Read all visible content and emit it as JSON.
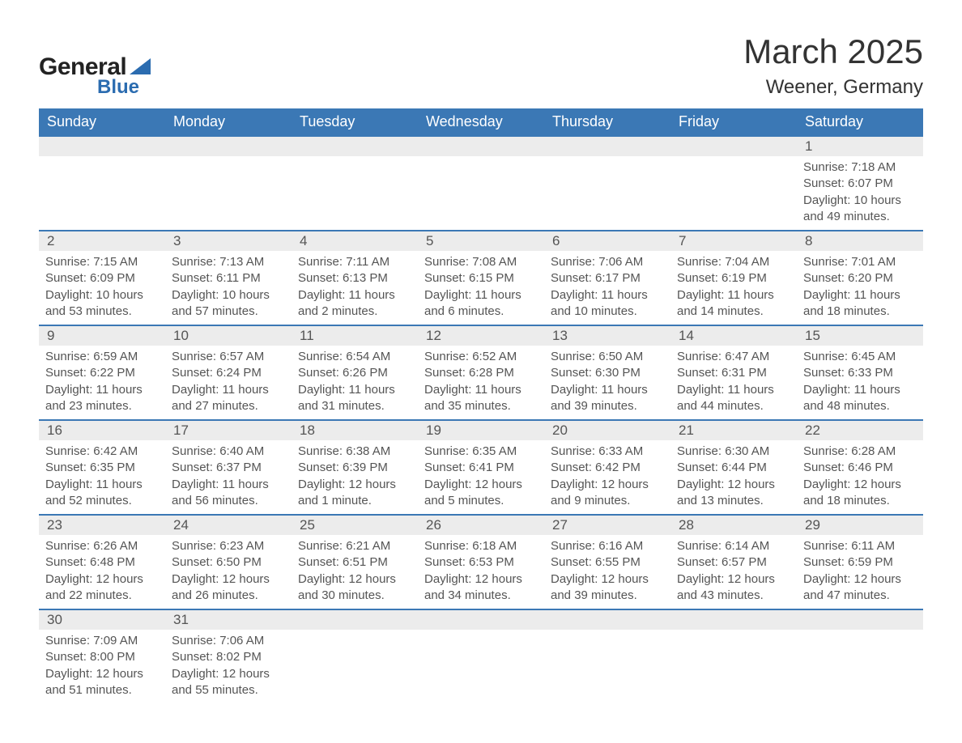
{
  "brand": {
    "word1": "General",
    "word2": "Blue",
    "accent_color": "#3b78b5"
  },
  "title": "March 2025",
  "location": "Weener, Germany",
  "colors": {
    "header_bg": "#3b78b5",
    "header_text": "#ffffff",
    "daynum_bg": "#ececec",
    "text": "#555555",
    "border": "#3b78b5",
    "background": "#ffffff"
  },
  "weekdays": [
    "Sunday",
    "Monday",
    "Tuesday",
    "Wednesday",
    "Thursday",
    "Friday",
    "Saturday"
  ],
  "weeks": [
    [
      null,
      null,
      null,
      null,
      null,
      null,
      {
        "n": "1",
        "sr": "Sunrise: 7:18 AM",
        "ss": "Sunset: 6:07 PM",
        "dl": "Daylight: 10 hours and 49 minutes."
      }
    ],
    [
      {
        "n": "2",
        "sr": "Sunrise: 7:15 AM",
        "ss": "Sunset: 6:09 PM",
        "dl": "Daylight: 10 hours and 53 minutes."
      },
      {
        "n": "3",
        "sr": "Sunrise: 7:13 AM",
        "ss": "Sunset: 6:11 PM",
        "dl": "Daylight: 10 hours and 57 minutes."
      },
      {
        "n": "4",
        "sr": "Sunrise: 7:11 AM",
        "ss": "Sunset: 6:13 PM",
        "dl": "Daylight: 11 hours and 2 minutes."
      },
      {
        "n": "5",
        "sr": "Sunrise: 7:08 AM",
        "ss": "Sunset: 6:15 PM",
        "dl": "Daylight: 11 hours and 6 minutes."
      },
      {
        "n": "6",
        "sr": "Sunrise: 7:06 AM",
        "ss": "Sunset: 6:17 PM",
        "dl": "Daylight: 11 hours and 10 minutes."
      },
      {
        "n": "7",
        "sr": "Sunrise: 7:04 AM",
        "ss": "Sunset: 6:19 PM",
        "dl": "Daylight: 11 hours and 14 minutes."
      },
      {
        "n": "8",
        "sr": "Sunrise: 7:01 AM",
        "ss": "Sunset: 6:20 PM",
        "dl": "Daylight: 11 hours and 18 minutes."
      }
    ],
    [
      {
        "n": "9",
        "sr": "Sunrise: 6:59 AM",
        "ss": "Sunset: 6:22 PM",
        "dl": "Daylight: 11 hours and 23 minutes."
      },
      {
        "n": "10",
        "sr": "Sunrise: 6:57 AM",
        "ss": "Sunset: 6:24 PM",
        "dl": "Daylight: 11 hours and 27 minutes."
      },
      {
        "n": "11",
        "sr": "Sunrise: 6:54 AM",
        "ss": "Sunset: 6:26 PM",
        "dl": "Daylight: 11 hours and 31 minutes."
      },
      {
        "n": "12",
        "sr": "Sunrise: 6:52 AM",
        "ss": "Sunset: 6:28 PM",
        "dl": "Daylight: 11 hours and 35 minutes."
      },
      {
        "n": "13",
        "sr": "Sunrise: 6:50 AM",
        "ss": "Sunset: 6:30 PM",
        "dl": "Daylight: 11 hours and 39 minutes."
      },
      {
        "n": "14",
        "sr": "Sunrise: 6:47 AM",
        "ss": "Sunset: 6:31 PM",
        "dl": "Daylight: 11 hours and 44 minutes."
      },
      {
        "n": "15",
        "sr": "Sunrise: 6:45 AM",
        "ss": "Sunset: 6:33 PM",
        "dl": "Daylight: 11 hours and 48 minutes."
      }
    ],
    [
      {
        "n": "16",
        "sr": "Sunrise: 6:42 AM",
        "ss": "Sunset: 6:35 PM",
        "dl": "Daylight: 11 hours and 52 minutes."
      },
      {
        "n": "17",
        "sr": "Sunrise: 6:40 AM",
        "ss": "Sunset: 6:37 PM",
        "dl": "Daylight: 11 hours and 56 minutes."
      },
      {
        "n": "18",
        "sr": "Sunrise: 6:38 AM",
        "ss": "Sunset: 6:39 PM",
        "dl": "Daylight: 12 hours and 1 minute."
      },
      {
        "n": "19",
        "sr": "Sunrise: 6:35 AM",
        "ss": "Sunset: 6:41 PM",
        "dl": "Daylight: 12 hours and 5 minutes."
      },
      {
        "n": "20",
        "sr": "Sunrise: 6:33 AM",
        "ss": "Sunset: 6:42 PM",
        "dl": "Daylight: 12 hours and 9 minutes."
      },
      {
        "n": "21",
        "sr": "Sunrise: 6:30 AM",
        "ss": "Sunset: 6:44 PM",
        "dl": "Daylight: 12 hours and 13 minutes."
      },
      {
        "n": "22",
        "sr": "Sunrise: 6:28 AM",
        "ss": "Sunset: 6:46 PM",
        "dl": "Daylight: 12 hours and 18 minutes."
      }
    ],
    [
      {
        "n": "23",
        "sr": "Sunrise: 6:26 AM",
        "ss": "Sunset: 6:48 PM",
        "dl": "Daylight: 12 hours and 22 minutes."
      },
      {
        "n": "24",
        "sr": "Sunrise: 6:23 AM",
        "ss": "Sunset: 6:50 PM",
        "dl": "Daylight: 12 hours and 26 minutes."
      },
      {
        "n": "25",
        "sr": "Sunrise: 6:21 AM",
        "ss": "Sunset: 6:51 PM",
        "dl": "Daylight: 12 hours and 30 minutes."
      },
      {
        "n": "26",
        "sr": "Sunrise: 6:18 AM",
        "ss": "Sunset: 6:53 PM",
        "dl": "Daylight: 12 hours and 34 minutes."
      },
      {
        "n": "27",
        "sr": "Sunrise: 6:16 AM",
        "ss": "Sunset: 6:55 PM",
        "dl": "Daylight: 12 hours and 39 minutes."
      },
      {
        "n": "28",
        "sr": "Sunrise: 6:14 AM",
        "ss": "Sunset: 6:57 PM",
        "dl": "Daylight: 12 hours and 43 minutes."
      },
      {
        "n": "29",
        "sr": "Sunrise: 6:11 AM",
        "ss": "Sunset: 6:59 PM",
        "dl": "Daylight: 12 hours and 47 minutes."
      }
    ],
    [
      {
        "n": "30",
        "sr": "Sunrise: 7:09 AM",
        "ss": "Sunset: 8:00 PM",
        "dl": "Daylight: 12 hours and 51 minutes."
      },
      {
        "n": "31",
        "sr": "Sunrise: 7:06 AM",
        "ss": "Sunset: 8:02 PM",
        "dl": "Daylight: 12 hours and 55 minutes."
      },
      null,
      null,
      null,
      null,
      null
    ]
  ]
}
